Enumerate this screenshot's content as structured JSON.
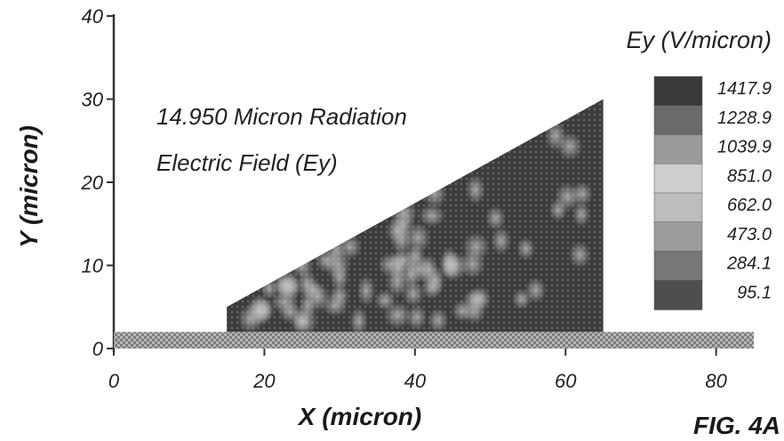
{
  "chart_data": {
    "type": "heatmap",
    "title": "",
    "xlabel": "X (micron)",
    "ylabel": "Y (micron)",
    "xlim": [
      0,
      85
    ],
    "ylim": [
      0,
      40
    ],
    "x_ticks": [
      "0",
      "20",
      "40",
      "60",
      "80"
    ],
    "y_ticks": [
      "0",
      "10",
      "20",
      "30",
      "40"
    ],
    "annotation": [
      "14.950 Micron Radiation",
      "Electric Field (Ey)"
    ],
    "colorbar": {
      "title": "Ey (V/micron)",
      "levels": [
        "1417.9",
        "1228.9",
        "1039.9",
        "851.0",
        "662.0",
        "473.0",
        "284.1",
        "95.1"
      ],
      "colors": [
        "#3a3a3a",
        "#6a6a6a",
        "#9a9a9a",
        "#cfcfcf",
        "#bdbdbd",
        "#9c9c9c",
        "#777777",
        "#4e4e4e"
      ]
    },
    "regions": [
      {
        "name": "substrate layer",
        "x": [
          0,
          85
        ],
        "y": [
          0,
          2
        ]
      },
      {
        "name": "wedge",
        "polygon": [
          [
            15,
            2
          ],
          [
            15,
            5
          ],
          [
            65,
            30
          ],
          [
            65,
            2
          ]
        ]
      }
    ],
    "grid": false,
    "caption": "FIG. 4A"
  }
}
